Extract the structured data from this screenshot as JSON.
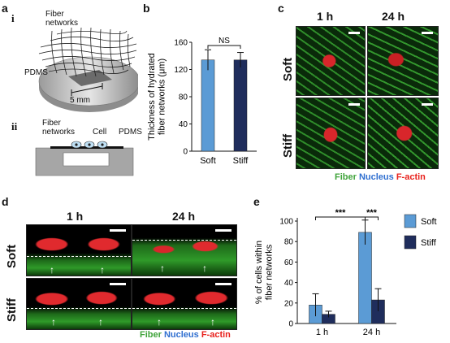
{
  "panels": {
    "a": "a",
    "b": "b",
    "c": "c",
    "d": "d",
    "e": "e"
  },
  "panel_a": {
    "sub_i": "i",
    "sub_ii": "ii",
    "fiber_networks_i": "Fiber\nnetworks",
    "pdms_i": "PDMS",
    "scale_i": "5 mm",
    "fiber_networks_ii": "Fiber\nnetworks",
    "cell_ii": "Cell",
    "pdms_ii": "PDMS"
  },
  "panel_c": {
    "col_1": "1 h",
    "col_2": "24 h",
    "row_1": "Soft",
    "row_2": "Stiff"
  },
  "panel_d": {
    "col_1": "1 h",
    "col_2": "24 h",
    "row_1": "Soft",
    "row_2": "Stiff"
  },
  "stain_legend": {
    "fiber": "Fiber",
    "nucleus": "Nucleus",
    "factin": "F-actin",
    "colors": {
      "fiber": "#3fa33a",
      "nucleus": "#2f6fd0",
      "factin": "#e8211c"
    }
  },
  "chart_data": [
    {
      "panel": "b",
      "type": "bar",
      "categories": [
        "Soft",
        "Stiff"
      ],
      "values": [
        134,
        134
      ],
      "errors": [
        15,
        11
      ],
      "colors": [
        "#5b9bd5",
        "#1f2d5c"
      ],
      "ylabel": "Thickness of hydrated\nfiber networks (μm)",
      "xlabel": "",
      "ylim": [
        0,
        160
      ],
      "yticks": [
        "0",
        "40",
        "80",
        "120",
        "160"
      ],
      "significance": "NS"
    },
    {
      "panel": "e",
      "type": "bar",
      "categories": [
        "1 h",
        "24 h"
      ],
      "series": [
        {
          "name": "Soft",
          "values": [
            18,
            89
          ],
          "errors": [
            11,
            12
          ],
          "color": "#5b9bd5"
        },
        {
          "name": "Stiff",
          "values": [
            9,
            23
          ],
          "errors": [
            3,
            11
          ],
          "color": "#1f2d5c"
        }
      ],
      "ylabel": "% of cells within\nfiber networks",
      "xlabel": "",
      "ylim": [
        0,
        100
      ],
      "yticks": [
        "0",
        "20",
        "40",
        "60",
        "80",
        "100"
      ],
      "significance": [
        "***",
        "***"
      ],
      "legend_position": "right"
    }
  ]
}
